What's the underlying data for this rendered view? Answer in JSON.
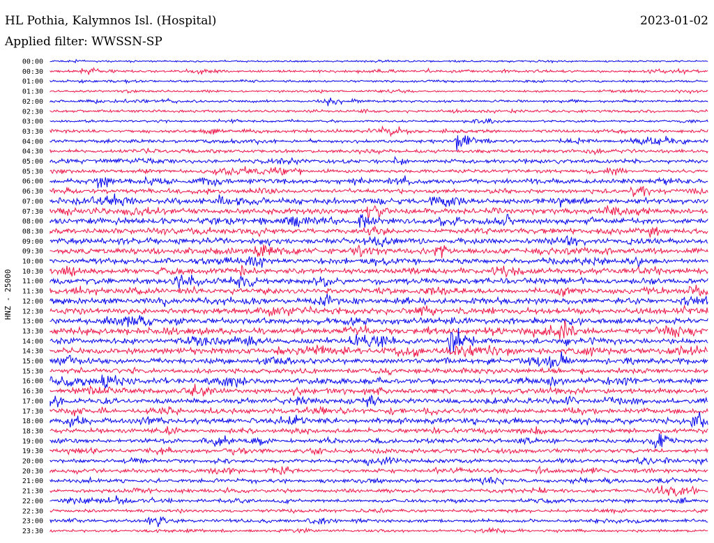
{
  "header": {
    "station": "HL Pothia, Kalymnos Isl. (Hospital)",
    "date": "2023-01-02",
    "filter_label": "Applied filter:",
    "filter_value": "WWSSN-SP"
  },
  "chart_data": {
    "type": "line",
    "title": "HL Pothia, Kalymnos Isl. (Hospital)",
    "subtitle": "Applied filter: WWSSN-SP",
    "date": "2023-01-02",
    "ylabel": "HNZ - 25000",
    "trace_colors": [
      "#0000ee",
      "#ee1144"
    ],
    "trace_minutes": 30,
    "categories": [
      "00:00",
      "00:30",
      "01:00",
      "01:30",
      "02:00",
      "02:30",
      "03:00",
      "03:30",
      "04:00",
      "04:30",
      "05:00",
      "05:30",
      "06:00",
      "06:30",
      "07:00",
      "07:30",
      "08:00",
      "08:30",
      "09:00",
      "09:30",
      "10:00",
      "10:30",
      "11:00",
      "11:30",
      "12:00",
      "12:30",
      "13:00",
      "13:30",
      "14:00",
      "14:30",
      "15:00",
      "15:30",
      "16:00",
      "16:30",
      "17:00",
      "17:30",
      "18:00",
      "18:30",
      "19:00",
      "19:30",
      "20:00",
      "20:30",
      "21:00",
      "21:30",
      "22:00",
      "22:30",
      "23:00",
      "23:30"
    ],
    "noise_levels": [
      0.25,
      0.35,
      0.3,
      0.3,
      0.35,
      0.4,
      0.3,
      0.45,
      0.5,
      0.45,
      0.6,
      0.5,
      0.7,
      0.6,
      0.8,
      0.75,
      0.8,
      0.75,
      0.8,
      0.8,
      0.7,
      0.8,
      0.8,
      0.75,
      0.85,
      0.8,
      0.8,
      0.85,
      0.8,
      0.85,
      0.75,
      0.7,
      0.8,
      0.75,
      0.75,
      0.7,
      0.8,
      0.65,
      0.6,
      0.6,
      0.55,
      0.6,
      0.55,
      0.55,
      0.5,
      0.45,
      0.45,
      0.35
    ],
    "events": [
      {
        "trace": "04:00",
        "minute": 18.5,
        "amplitude": 2.8
      },
      {
        "trace": "05:30",
        "minute": 7.5,
        "amplitude": 1.3,
        "duration": 3.8
      },
      {
        "trace": "06:00",
        "minute": 2.2,
        "amplitude": 2.2
      },
      {
        "trace": "06:30",
        "minute": 26.5,
        "amplitude": 2.8
      },
      {
        "trace": "07:00",
        "minute": 7.5,
        "amplitude": 2.5
      },
      {
        "trace": "07:30",
        "minute": 14.5,
        "amplitude": 3.0
      },
      {
        "trace": "08:00",
        "minute": 14.0,
        "amplitude": 2.2
      },
      {
        "trace": "08:00",
        "minute": 20.3,
        "amplitude": 2.5
      },
      {
        "trace": "09:30",
        "minute": 17.5,
        "amplitude": 1.8
      },
      {
        "trace": "10:00",
        "minute": 9.0,
        "amplitude": 2.8
      },
      {
        "trace": "10:30",
        "minute": 0.6,
        "amplitude": 2.0
      },
      {
        "trace": "11:00",
        "minute": 5.5,
        "amplitude": 2.0
      },
      {
        "trace": "11:00",
        "minute": 8.5,
        "amplitude": 2.2
      },
      {
        "trace": "13:30",
        "minute": 23.2,
        "amplitude": 2.8
      },
      {
        "trace": "14:00",
        "minute": 14.9,
        "amplitude": 3.0
      },
      {
        "trace": "14:00",
        "minute": 18.2,
        "amplitude": 4.2
      },
      {
        "trace": "15:00",
        "minute": 22.8,
        "amplitude": 3.0
      },
      {
        "trace": "18:00",
        "minute": 29.2,
        "amplitude": 2.5
      },
      {
        "trace": "19:00",
        "minute": 27.5,
        "amplitude": 3.2
      },
      {
        "trace": "23:00",
        "minute": 4.5,
        "amplitude": 1.8
      }
    ]
  }
}
